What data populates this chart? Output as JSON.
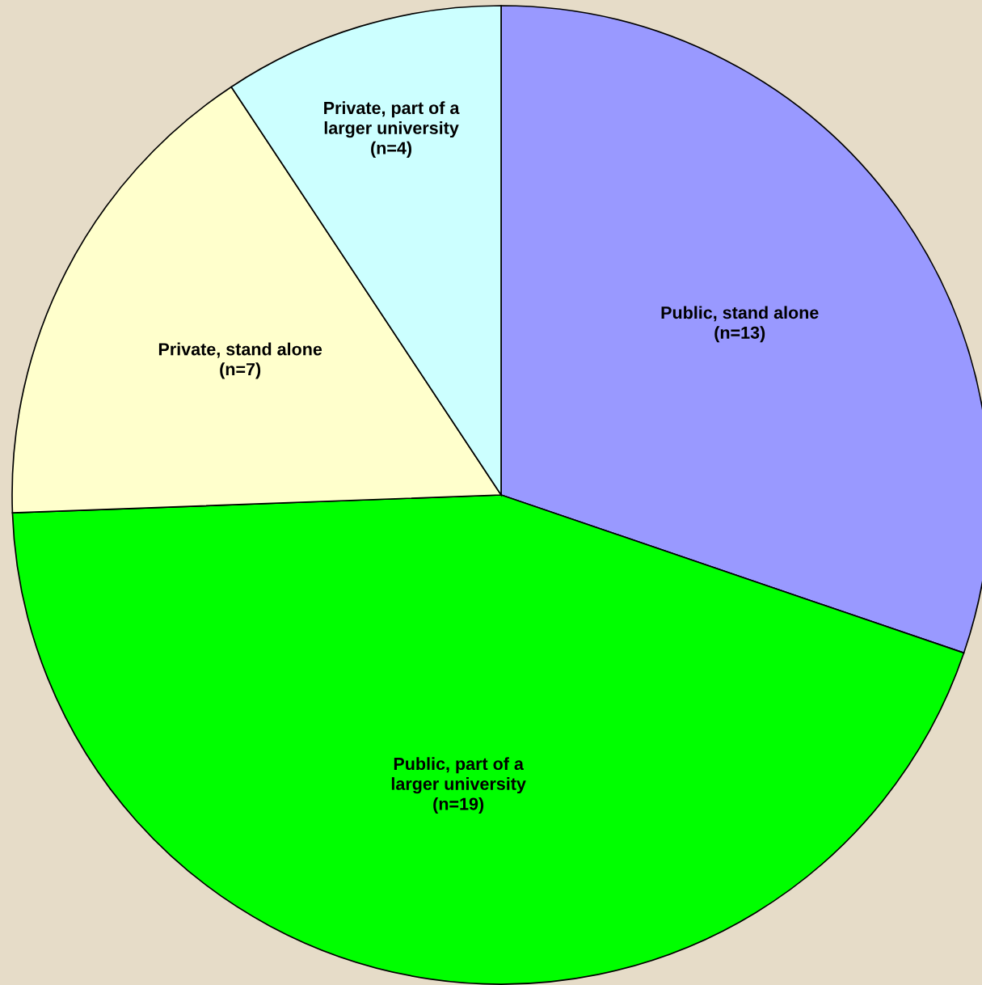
{
  "chart_data": {
    "type": "pie",
    "categories": [
      "Public, stand alone",
      "Public, part of a\nlarger university",
      "Private, stand alone",
      "Private, part of a\nlarger university"
    ],
    "values": [
      13,
      19,
      7,
      4
    ],
    "value_labels": [
      "(n=13)",
      "(n=19)",
      "(n=7)",
      "(n=4)"
    ],
    "colors": [
      "#9999ff",
      "#00ff00",
      "#ffffcc",
      "#ccffff"
    ],
    "legend": false
  }
}
